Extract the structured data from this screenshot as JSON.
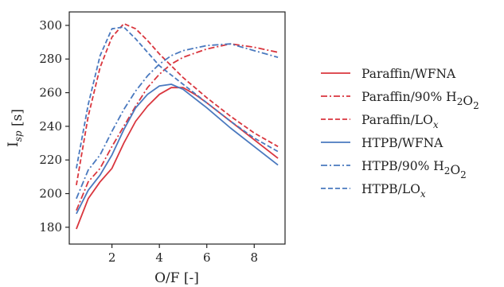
{
  "chart_data": {
    "type": "line",
    "xlabel": "O/F [-]",
    "ylabel": "I_{sp} [s]",
    "xlim": [
      0.2,
      9.3
    ],
    "ylim": [
      170,
      308
    ],
    "xticks": [
      2,
      4,
      6,
      8
    ],
    "yticks": [
      180,
      200,
      220,
      240,
      260,
      280,
      300
    ],
    "grid": false,
    "legend_position": "right",
    "series": [
      {
        "name": "Paraffin/WFNA",
        "color": "#d9363e",
        "dash": "solid",
        "x": [
          0.5,
          1.0,
          1.5,
          2.0,
          2.5,
          3.0,
          3.5,
          4.0,
          4.5,
          5.0,
          5.5,
          6.0,
          7.0,
          8.0,
          9.0
        ],
        "y": [
          179,
          197,
          207,
          215,
          230,
          243,
          252,
          259,
          263,
          263,
          259,
          254,
          243,
          232,
          221
        ]
      },
      {
        "name": "Paraffin/90% H_2O_2",
        "color": "#d9363e",
        "dash": "dashdot",
        "x": [
          0.5,
          1.0,
          1.5,
          2.0,
          2.5,
          3.0,
          3.5,
          4.0,
          4.5,
          5.0,
          6.0,
          7.0,
          8.0,
          9.0
        ],
        "y": [
          190,
          207,
          215,
          228,
          240,
          252,
          263,
          271,
          277,
          281,
          286,
          289,
          287,
          284
        ]
      },
      {
        "name": "Paraffin/LO_x",
        "color": "#d9363e",
        "dash": "dashed",
        "x": [
          0.5,
          1.0,
          1.5,
          2.0,
          2.5,
          3.0,
          3.5,
          4.0,
          5.0,
          6.0,
          7.0,
          8.0,
          9.0
        ],
        "y": [
          205,
          246,
          275,
          293,
          301,
          298,
          291,
          283,
          269,
          257,
          246,
          236,
          228
        ]
      },
      {
        "name": "HTPB/WFNA",
        "color": "#4a79bf",
        "dash": "solid",
        "x": [
          0.5,
          1.0,
          1.5,
          2.0,
          2.5,
          3.0,
          3.5,
          4.0,
          4.5,
          5.0,
          6.0,
          7.0,
          8.0,
          9.0
        ],
        "y": [
          188,
          202,
          211,
          223,
          238,
          251,
          259,
          264,
          265,
          262,
          251,
          239,
          228,
          217
        ]
      },
      {
        "name": "HTPB/90% H_2O_2",
        "color": "#4a79bf",
        "dash": "dashdot",
        "x": [
          0.5,
          1.0,
          1.5,
          2.0,
          2.5,
          3.0,
          3.5,
          4.0,
          4.5,
          5.0,
          6.0,
          7.0,
          8.0,
          9.0
        ],
        "y": [
          197,
          214,
          223,
          237,
          250,
          261,
          270,
          277,
          282,
          285,
          288,
          289,
          285,
          281
        ]
      },
      {
        "name": "HTPB/LO_x",
        "color": "#4a79bf",
        "dash": "dashed",
        "x": [
          0.5,
          1.0,
          1.5,
          2.0,
          2.5,
          3.0,
          3.5,
          4.0,
          5.0,
          6.0,
          7.0,
          8.0,
          9.0
        ],
        "y": [
          215,
          253,
          282,
          298,
          299,
          292,
          284,
          276,
          265,
          254,
          243,
          233,
          225
        ]
      }
    ]
  }
}
